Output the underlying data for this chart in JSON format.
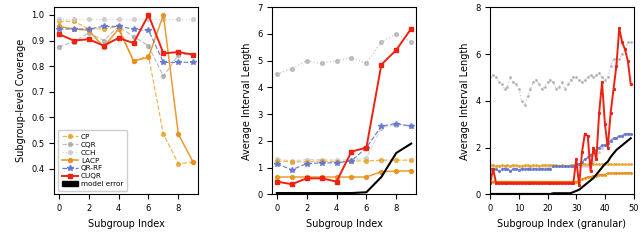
{
  "plot1": {
    "xlabel": "Subgroup Index",
    "ylabel": "Subgroup-level Coverage",
    "xlim": [
      -0.3,
      9.3
    ],
    "ylim": [
      0.3,
      1.03
    ],
    "yticks": [
      0.4,
      0.5,
      0.6,
      0.7,
      0.8,
      0.9,
      1.0
    ],
    "xticks": [
      0,
      2,
      4,
      6,
      8
    ],
    "CP": [
      0.975,
      0.975,
      0.945,
      0.945,
      0.955,
      0.82,
      0.84,
      0.535,
      0.42,
      0.425
    ],
    "CQR": [
      0.875,
      0.895,
      0.93,
      0.9,
      0.955,
      0.915,
      0.88,
      0.76,
      0.845,
      0.845
    ],
    "CCH": [
      0.985,
      0.985,
      0.985,
      0.985,
      0.985,
      0.985,
      0.985,
      0.985,
      0.985,
      0.985
    ],
    "LACP": [
      0.955,
      0.945,
      0.94,
      0.875,
      0.945,
      0.82,
      0.835,
      1.0,
      0.535,
      0.425
    ],
    "QR_RF": [
      0.945,
      0.945,
      0.945,
      0.955,
      0.955,
      0.945,
      0.94,
      0.815,
      0.815,
      0.815
    ],
    "CUQR": [
      0.925,
      0.9,
      0.905,
      0.88,
      0.91,
      0.89,
      1.0,
      0.85,
      0.855,
      0.845
    ]
  },
  "plot2": {
    "xlabel": "Subgroup Index",
    "ylabel": "Average Interval Length",
    "xlim": [
      -0.3,
      9.3
    ],
    "ylim": [
      0,
      7
    ],
    "yticks": [
      0,
      1,
      2,
      3,
      4,
      5,
      6,
      7
    ],
    "xticks": [
      0,
      2,
      4,
      6,
      8
    ],
    "CP": [
      1.25,
      1.22,
      1.22,
      1.25,
      1.22,
      1.25,
      1.25,
      1.28,
      1.28,
      1.28
    ],
    "CQR": [
      4.5,
      4.7,
      5.0,
      4.9,
      5.0,
      5.1,
      4.9,
      5.7,
      6.0,
      5.7
    ],
    "CCH": [
      1.32,
      1.25,
      1.3,
      1.3,
      1.28,
      1.3,
      1.35,
      2.5,
      2.6,
      2.55
    ],
    "LACP": [
      0.65,
      0.65,
      0.65,
      0.65,
      0.65,
      0.65,
      0.65,
      0.85,
      0.87,
      0.88
    ],
    "QR_RF": [
      1.15,
      0.92,
      1.15,
      1.18,
      1.18,
      1.25,
      1.75,
      2.55,
      2.65,
      2.55
    ],
    "CUQR": [
      0.48,
      0.38,
      0.6,
      0.6,
      0.48,
      1.6,
      1.75,
      4.85,
      5.4,
      6.2
    ],
    "model_error": [
      0.05,
      0.05,
      0.05,
      0.05,
      0.05,
      0.05,
      0.08,
      0.65,
      1.55,
      1.9
    ]
  },
  "plot3": {
    "xlabel": "Subgroup Index (granular)",
    "ylabel": "Average Interval Length",
    "xlim": [
      0,
      49
    ],
    "ylim": [
      0,
      8
    ],
    "yticks": [
      0,
      2,
      4,
      6,
      8
    ],
    "xticks": [
      0,
      10,
      20,
      30,
      40,
      50
    ],
    "CP": [
      1.25,
      1.25,
      1.22,
      1.22,
      1.25,
      1.22,
      1.25,
      1.22,
      1.25,
      1.25,
      1.22,
      1.22,
      1.25,
      1.25,
      1.22,
      1.25,
      1.25,
      1.22,
      1.25,
      1.25,
      1.25,
      1.25,
      1.25,
      1.25,
      1.22,
      1.25,
      1.22,
      1.22,
      1.25,
      1.25,
      1.28,
      1.28,
      1.28,
      1.28,
      1.28,
      1.28,
      1.28,
      1.28,
      1.28,
      1.28,
      1.28,
      1.28,
      1.28,
      1.28,
      1.28,
      1.28,
      1.28,
      1.28,
      1.28,
      1.28
    ],
    "CQR": [
      5.0,
      5.1,
      5.0,
      4.8,
      4.7,
      4.5,
      4.6,
      5.0,
      4.8,
      4.7,
      4.5,
      4.0,
      3.8,
      4.2,
      4.5,
      4.8,
      4.9,
      4.7,
      4.5,
      4.6,
      4.8,
      4.9,
      4.8,
      4.5,
      4.6,
      4.8,
      4.5,
      4.7,
      4.9,
      5.0,
      5.0,
      4.9,
      4.8,
      4.9,
      5.0,
      5.1,
      5.0,
      5.1,
      5.2,
      5.0,
      4.9,
      5.0,
      5.5,
      5.8,
      5.5,
      5.8,
      6.0,
      6.2,
      6.5,
      6.5
    ],
    "CCH": [
      1.2,
      1.2,
      1.2,
      1.2,
      1.2,
      1.2,
      1.2,
      1.2,
      1.2,
      1.2,
      1.2,
      1.2,
      1.2,
      1.2,
      1.2,
      1.2,
      1.2,
      1.2,
      1.2,
      1.2,
      1.2,
      1.2,
      1.2,
      1.2,
      1.2,
      1.2,
      1.2,
      1.2,
      1.2,
      1.2,
      1.2,
      1.2,
      1.2,
      1.2,
      1.2,
      1.3,
      1.4,
      1.6,
      1.8,
      2.0,
      2.1,
      2.2,
      2.3,
      2.4,
      2.4,
      2.5,
      2.5,
      2.6,
      2.6,
      2.6
    ],
    "LACP": [
      0.55,
      0.55,
      0.55,
      0.55,
      0.55,
      0.55,
      0.55,
      0.55,
      0.55,
      0.55,
      0.55,
      0.55,
      0.55,
      0.55,
      0.55,
      0.55,
      0.55,
      0.55,
      0.55,
      0.55,
      0.55,
      0.55,
      0.55,
      0.55,
      0.55,
      0.55,
      0.55,
      0.55,
      0.55,
      0.55,
      0.55,
      0.55,
      0.65,
      0.7,
      0.75,
      0.75,
      0.8,
      0.8,
      0.85,
      0.85,
      0.85,
      0.9,
      0.9,
      0.9,
      0.9,
      0.9,
      0.9,
      0.92,
      0.92,
      0.92
    ],
    "QR_RF": [
      1.1,
      1.1,
      1.1,
      1.0,
      1.1,
      1.1,
      1.1,
      1.0,
      1.1,
      1.1,
      1.05,
      1.1,
      1.1,
      1.1,
      1.1,
      1.1,
      1.1,
      1.1,
      1.1,
      1.1,
      1.1,
      1.1,
      1.2,
      1.2,
      1.2,
      1.2,
      1.2,
      1.2,
      1.2,
      1.2,
      1.3,
      1.3,
      1.4,
      1.5,
      1.6,
      1.7,
      1.8,
      1.9,
      2.0,
      2.1,
      2.1,
      2.2,
      2.3,
      2.4,
      2.4,
      2.5,
      2.5,
      2.6,
      2.6,
      2.6
    ],
    "CUQR": [
      0.5,
      1.1,
      0.5,
      0.5,
      0.5,
      0.5,
      0.5,
      0.5,
      0.5,
      0.5,
      0.5,
      0.5,
      0.5,
      0.5,
      0.5,
      0.5,
      0.5,
      0.5,
      0.5,
      0.5,
      0.5,
      0.5,
      0.5,
      0.5,
      0.5,
      0.5,
      0.5,
      0.5,
      0.5,
      0.5,
      1.5,
      0.4,
      1.8,
      2.6,
      2.5,
      1.0,
      2.0,
      1.5,
      3.5,
      4.8,
      3.0,
      2.0,
      3.5,
      4.5,
      5.5,
      7.1,
      6.5,
      6.2,
      5.7,
      4.7
    ],
    "model_error": [
      0.02,
      0.02,
      0.02,
      0.02,
      0.02,
      0.02,
      0.02,
      0.02,
      0.02,
      0.02,
      0.02,
      0.02,
      0.02,
      0.02,
      0.02,
      0.02,
      0.02,
      0.02,
      0.02,
      0.02,
      0.02,
      0.02,
      0.05,
      0.05,
      0.05,
      0.05,
      0.05,
      0.05,
      0.05,
      0.1,
      0.15,
      0.2,
      0.3,
      0.4,
      0.5,
      0.6,
      0.7,
      0.85,
      1.0,
      1.15,
      1.3,
      1.4,
      1.6,
      1.75,
      1.9,
      2.0,
      2.1,
      2.2,
      2.3,
      2.4
    ]
  },
  "colors": {
    "CP": "#E8A020",
    "CQR": "#A0A0A0",
    "CCH": "#C8C8C8",
    "LACP": "#E8901A",
    "QR_RF": "#6677CC",
    "CUQR": "#EE2211",
    "model_error": "#000000"
  }
}
